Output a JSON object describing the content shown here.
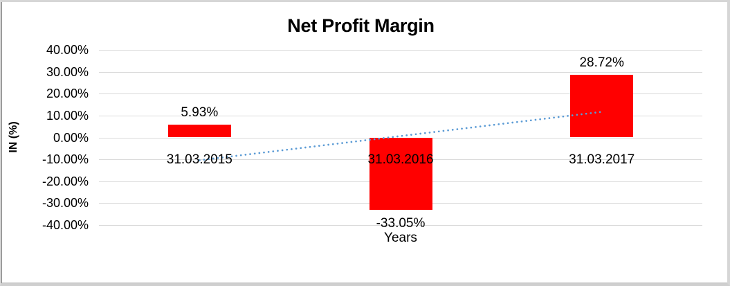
{
  "chart_data": {
    "type": "bar",
    "title": "Net Profit Margin",
    "xlabel": "Years",
    "ylabel": "IN (%)",
    "categories": [
      "31.03.2015",
      "31.03.2016",
      "31.03.2017"
    ],
    "values": [
      5.93,
      -33.05,
      28.72
    ],
    "value_labels": [
      "5.93%",
      "-33.05%",
      "28.72%"
    ],
    "y_ticks": [
      {
        "label": "40.00%",
        "value": 40
      },
      {
        "label": "30.00%",
        "value": 30
      },
      {
        "label": "20.00%",
        "value": 20
      },
      {
        "label": "10.00%",
        "value": 10
      },
      {
        "label": "0.00%",
        "value": 0
      },
      {
        "label": "-10.00%",
        "value": -10
      },
      {
        "label": "-20.00%",
        "value": -20
      },
      {
        "label": "-30.00%",
        "value": -30
      },
      {
        "label": "-40.00%",
        "value": -40
      }
    ],
    "ylim": [
      -40,
      40
    ],
    "grid": true,
    "legend": "none",
    "colors": {
      "bar": "#FF0000",
      "gridline": "#D9D9D9",
      "trendline": "#5B9BD5",
      "text": "#000000"
    },
    "trendline": {
      "type": "linear",
      "style": "dotted",
      "start_value": -10.4,
      "end_value": 11.7
    }
  }
}
